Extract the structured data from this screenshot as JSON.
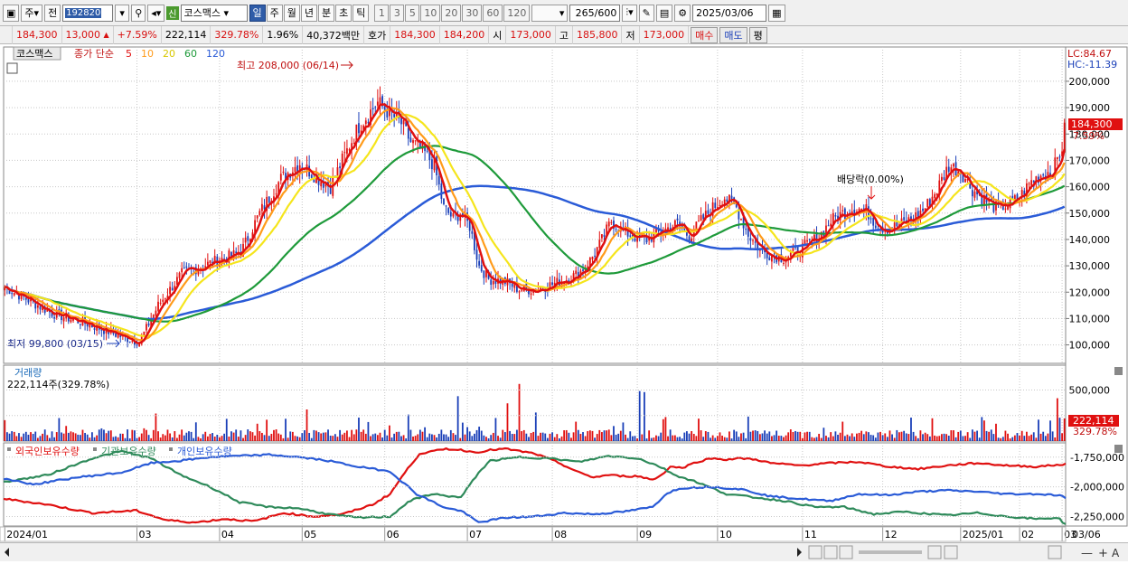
{
  "toolbar": {
    "period_label": "주",
    "prev_label": "전",
    "code": "192820",
    "sin_label": "신",
    "stock_name": "코스맥스",
    "timeframes": [
      "일",
      "주",
      "월",
      "년",
      "분",
      "초",
      "틱"
    ],
    "selected_timeframe": "일",
    "intervals": [
      "1",
      "3",
      "5",
      "10",
      "20",
      "30",
      "60",
      "120"
    ],
    "count": "265/600",
    "date": "2025/03/06"
  },
  "quote": {
    "price": "184,300",
    "change": "13,000",
    "change_pct": "+7.59%",
    "volume": "222,114",
    "volume_pct": "329.78%",
    "turnover_pct": "1.96%",
    "amount": "40,372백만",
    "bid_label": "호가",
    "ask": "184,300",
    "bid": "184,200",
    "open_label": "시",
    "open": "173,000",
    "high_label": "고",
    "high": "185,800",
    "low_label": "저",
    "low": "173,000",
    "buy_label": "매수",
    "sell_label": "매도",
    "eval_label": "평"
  },
  "price_panel": {
    "title": "코스맥스",
    "legend_prefix": "종가 단순",
    "ma_periods": [
      "5",
      "10",
      "20",
      "60",
      "120"
    ],
    "ma_colors": [
      "#e01010",
      "#ff9b1a",
      "#f5e51c",
      "#1e9a3a",
      "#2a5bd7"
    ],
    "high_annot": "최고 208,000 (06/14)",
    "low_annot": "최저 99,800 (03/15)",
    "div_annot": "배당락(0.00%)",
    "lc": "LC:84.67",
    "hc": "HC:-11.39",
    "last_price": "184,300",
    "last_pct": "7.59%"
  },
  "volume_panel": {
    "title": "거래량",
    "value": "222,114주(329.78%)",
    "last": "222,114",
    "last_pct": "329.78%"
  },
  "holdings_panel": {
    "series": [
      "외국인보유수량",
      "기관보유수량",
      "개인보유수량"
    ]
  },
  "x_axis": [
    "2024/01",
    "03",
    "04",
    "05",
    "06",
    "07",
    "08",
    "09",
    "10",
    "11",
    "12",
    "2025/01",
    "02",
    "03"
  ],
  "x_axis_right": "03/06",
  "chart_data": {
    "type": "candlestick",
    "price_ticks": [
      100000,
      110000,
      120000,
      130000,
      140000,
      150000,
      160000,
      170000,
      180000,
      190000,
      200000
    ],
    "price_tick_labels": [
      "100,000",
      "110,000",
      "120,000",
      "130,000",
      "140,000",
      "150,000",
      "160,000",
      "170,000",
      "180,000",
      "190,000",
      "200,000"
    ],
    "price_range": [
      93000,
      213000
    ],
    "close_keypoints": [
      [
        0,
        122000
      ],
      [
        20,
        112000
      ],
      [
        35,
        108000
      ],
      [
        50,
        103000
      ],
      [
        57,
        101000
      ],
      [
        65,
        115000
      ],
      [
        75,
        127000
      ],
      [
        90,
        132000
      ],
      [
        100,
        135000
      ],
      [
        108,
        150000
      ],
      [
        117,
        163000
      ],
      [
        125,
        169000
      ],
      [
        133,
        163000
      ],
      [
        138,
        160000
      ],
      [
        143,
        170000
      ],
      [
        150,
        183000
      ],
      [
        158,
        192000
      ],
      [
        163,
        188000
      ],
      [
        168,
        184000
      ],
      [
        172,
        177000
      ],
      [
        177,
        174000
      ],
      [
        182,
        168000
      ],
      [
        186,
        152000
      ],
      [
        190,
        148000
      ],
      [
        193,
        150000
      ],
      [
        197,
        145000
      ],
      [
        201,
        130000
      ],
      [
        205,
        125000
      ],
      [
        212,
        124000
      ],
      [
        218,
        121000
      ],
      [
        225,
        121000
      ],
      [
        232,
        123000
      ],
      [
        238,
        125000
      ],
      [
        243,
        127000
      ],
      [
        248,
        132000
      ],
      [
        252,
        138000
      ],
      [
        257,
        147000
      ],
      [
        262,
        143000
      ],
      [
        267,
        141000
      ],
      [
        272,
        140000
      ],
      [
        278,
        143000
      ],
      [
        285,
        146000
      ],
      [
        290,
        141000
      ],
      [
        295,
        147000
      ],
      [
        300,
        152000
      ],
      [
        305,
        156000
      ],
      [
        310,
        152000
      ],
      [
        315,
        142000
      ],
      [
        320,
        136000
      ],
      [
        325,
        134000
      ],
      [
        330,
        133000
      ],
      [
        335,
        135000
      ],
      [
        340,
        138000
      ],
      [
        345,
        141000
      ],
      [
        350,
        147000
      ],
      [
        355,
        150000
      ],
      [
        360,
        152000
      ],
      [
        365,
        151000
      ],
      [
        370,
        145000
      ],
      [
        375,
        144000
      ],
      [
        380,
        146000
      ],
      [
        385,
        148000
      ],
      [
        390,
        152000
      ],
      [
        395,
        159000
      ],
      [
        400,
        168000
      ],
      [
        405,
        166000
      ],
      [
        410,
        159000
      ],
      [
        415,
        155000
      ],
      [
        420,
        152000
      ],
      [
        425,
        153000
      ],
      [
        430,
        156000
      ],
      [
        435,
        162000
      ],
      [
        440,
        165000
      ],
      [
        444,
        166000
      ],
      [
        448,
        175000
      ],
      [
        449,
        184300
      ]
    ],
    "volume_ticks": [
      250000,
      500000
    ],
    "volume_tick_labels": [
      "",
      "500,000"
    ],
    "volume_range": [
      0,
      620000
    ],
    "volume_spikes": [
      [
        64,
        270000
      ],
      [
        128,
        310000
      ],
      [
        150,
        230000
      ],
      [
        171,
        260000
      ],
      [
        192,
        440000
      ],
      [
        213,
        370000
      ],
      [
        218,
        560000
      ],
      [
        225,
        280000
      ],
      [
        242,
        190000
      ],
      [
        269,
        490000
      ],
      [
        271,
        480000
      ],
      [
        294,
        220000
      ],
      [
        315,
        240000
      ],
      [
        355,
        190000
      ],
      [
        384,
        230000
      ],
      [
        420,
        170000
      ],
      [
        438,
        210000
      ],
      [
        446,
        420000
      ],
      [
        449,
        222114
      ]
    ],
    "holdings_ticks": [
      -1750000,
      -2000000,
      -2250000
    ],
    "holdings_tick_labels": [
      "-1,750,000",
      "-2,000,000",
      "-2,250,000"
    ],
    "holdings_range": [
      -2330000,
      -1630000
    ],
    "foreign": [
      [
        0,
        -2100000
      ],
      [
        30,
        -2150000
      ],
      [
        60,
        -2220000
      ],
      [
        90,
        -2200000
      ],
      [
        110,
        -2280000
      ],
      [
        130,
        -2300000
      ],
      [
        150,
        -2270000
      ],
      [
        170,
        -2290000
      ],
      [
        190,
        -2220000
      ],
      [
        210,
        -2250000
      ],
      [
        230,
        -2230000
      ],
      [
        250,
        -2150000
      ],
      [
        262,
        -2060000
      ],
      [
        272,
        -1880000
      ],
      [
        282,
        -1720000
      ],
      [
        292,
        -1700000
      ],
      [
        300,
        -1680000
      ],
      [
        310,
        -1690000
      ],
      [
        320,
        -1710000
      ],
      [
        330,
        -1690000
      ],
      [
        340,
        -1680000
      ],
      [
        350,
        -1700000
      ],
      [
        360,
        -1720000
      ],
      [
        375,
        -1790000
      ],
      [
        390,
        -1880000
      ],
      [
        400,
        -1920000
      ],
      [
        410,
        -1900000
      ],
      [
        420,
        -1910000
      ],
      [
        430,
        -1910000
      ],
      [
        440,
        -1940000
      ],
      [
        446,
        -1900000
      ],
      [
        452,
        -1830000
      ],
      [
        460,
        -1840000
      ],
      [
        470,
        -1790000
      ],
      [
        480,
        -1760000
      ],
      [
        490,
        -1770000
      ],
      [
        500,
        -1760000
      ],
      [
        510,
        -1770000
      ],
      [
        520,
        -1800000
      ],
      [
        540,
        -1820000
      ],
      [
        560,
        -1800000
      ],
      [
        580,
        -1790000
      ],
      [
        600,
        -1830000
      ],
      [
        620,
        -1850000
      ],
      [
        640,
        -1820000
      ],
      [
        660,
        -1800000
      ],
      [
        680,
        -1820000
      ],
      [
        700,
        -1830000
      ],
      [
        720,
        -1810000
      ]
    ],
    "institution": [
      [
        0,
        -1960000
      ],
      [
        30,
        -1900000
      ],
      [
        60,
        -1760000
      ],
      [
        80,
        -1700000
      ],
      [
        100,
        -1760000
      ],
      [
        120,
        -1900000
      ],
      [
        140,
        -2000000
      ],
      [
        160,
        -2130000
      ],
      [
        180,
        -2170000
      ],
      [
        200,
        -2180000
      ],
      [
        220,
        -2230000
      ],
      [
        240,
        -2260000
      ],
      [
        262,
        -2250000
      ],
      [
        275,
        -2120000
      ],
      [
        290,
        -2060000
      ],
      [
        310,
        -2090000
      ],
      [
        322,
        -1880000
      ],
      [
        330,
        -1780000
      ],
      [
        350,
        -1750000
      ],
      [
        370,
        -1760000
      ],
      [
        390,
        -1790000
      ],
      [
        410,
        -1740000
      ],
      [
        430,
        -1760000
      ],
      [
        445,
        -1830000
      ],
      [
        455,
        -1900000
      ],
      [
        470,
        -1960000
      ],
      [
        490,
        -2060000
      ],
      [
        510,
        -2090000
      ],
      [
        530,
        -2120000
      ],
      [
        550,
        -2170000
      ],
      [
        570,
        -2170000
      ],
      [
        590,
        -2230000
      ],
      [
        610,
        -2210000
      ],
      [
        640,
        -2240000
      ],
      [
        660,
        -2220000
      ],
      [
        680,
        -2250000
      ],
      [
        700,
        -2270000
      ],
      [
        715,
        -2260000
      ],
      [
        720,
        -2320000
      ]
    ],
    "individual": [
      [
        0,
        -1930000
      ],
      [
        20,
        -1980000
      ],
      [
        50,
        -1920000
      ],
      [
        80,
        -1880000
      ],
      [
        100,
        -1800000
      ],
      [
        120,
        -1780000
      ],
      [
        140,
        -1750000
      ],
      [
        160,
        -1740000
      ],
      [
        180,
        -1730000
      ],
      [
        200,
        -1750000
      ],
      [
        220,
        -1780000
      ],
      [
        240,
        -1830000
      ],
      [
        262,
        -1870000
      ],
      [
        280,
        -2060000
      ],
      [
        300,
        -2180000
      ],
      [
        310,
        -2200000
      ],
      [
        322,
        -2300000
      ],
      [
        340,
        -2260000
      ],
      [
        360,
        -2250000
      ],
      [
        380,
        -2220000
      ],
      [
        400,
        -2230000
      ],
      [
        420,
        -2210000
      ],
      [
        440,
        -2170000
      ],
      [
        450,
        -2050000
      ],
      [
        460,
        -2010000
      ],
      [
        480,
        -2000000
      ],
      [
        500,
        -2020000
      ],
      [
        520,
        -2080000
      ],
      [
        540,
        -2100000
      ],
      [
        560,
        -2120000
      ],
      [
        580,
        -2060000
      ],
      [
        600,
        -2070000
      ],
      [
        620,
        -2040000
      ],
      [
        640,
        -2030000
      ],
      [
        660,
        -2040000
      ],
      [
        680,
        -2060000
      ],
      [
        700,
        -2060000
      ],
      [
        715,
        -2070000
      ],
      [
        720,
        -2090000
      ]
    ]
  }
}
